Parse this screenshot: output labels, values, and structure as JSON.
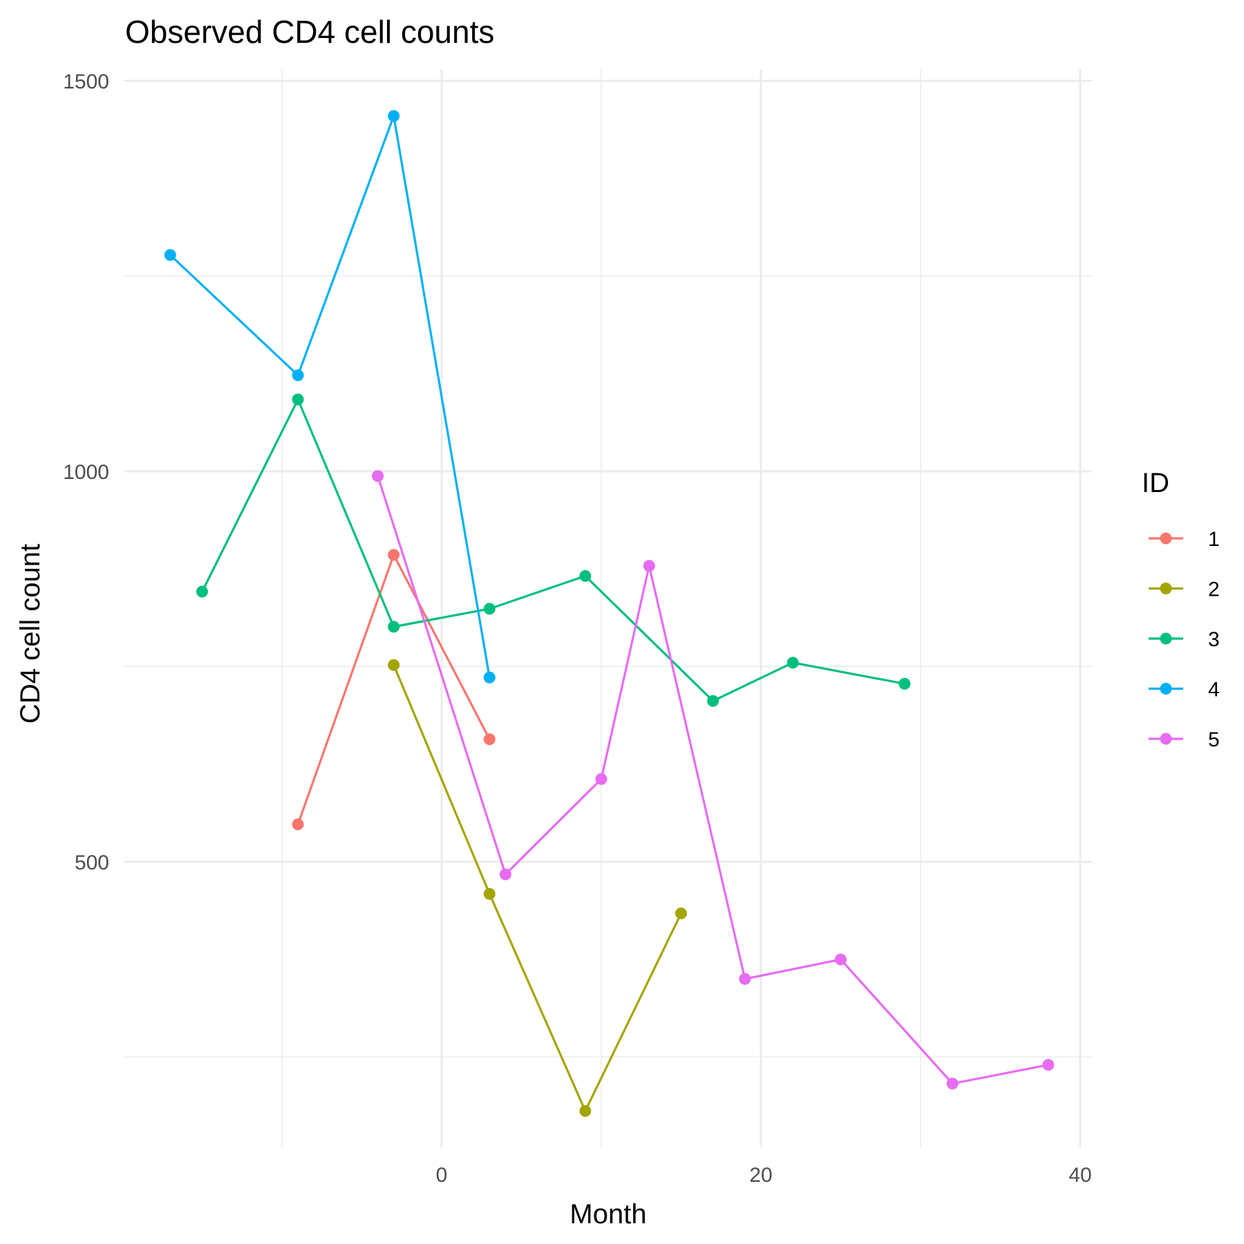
{
  "chart_data": {
    "type": "line",
    "title": "Observed CD4 cell counts",
    "xlabel": "Month",
    "ylabel": "CD4 cell count",
    "xlim": [
      -20,
      40
    ],
    "ylim": [
      150,
      1500
    ],
    "x_ticks": [
      0,
      20,
      40
    ],
    "y_ticks": [
      500,
      1000,
      1500
    ],
    "grid": true,
    "legend": {
      "title": "ID",
      "position": "right"
    },
    "series": [
      {
        "name": "1",
        "color": "#F8766D",
        "points": [
          [
            -9,
            548
          ],
          [
            -3,
            893
          ],
          [
            3,
            657
          ]
        ]
      },
      {
        "name": "2",
        "color": "#A3A500",
        "points": [
          [
            -3,
            752
          ],
          [
            3,
            459
          ],
          [
            9,
            181
          ],
          [
            15,
            434
          ]
        ]
      },
      {
        "name": "3",
        "color": "#00BF7D",
        "points": [
          [
            -15,
            846
          ],
          [
            -9,
            1092
          ],
          [
            -3,
            801
          ],
          [
            3,
            824
          ],
          [
            9,
            866
          ],
          [
            17,
            706
          ],
          [
            22,
            755
          ],
          [
            29,
            728
          ]
        ]
      },
      {
        "name": "4",
        "color": "#00B0F6",
        "points": [
          [
            -17,
            1277
          ],
          [
            -9,
            1123
          ],
          [
            -3,
            1455
          ],
          [
            3,
            736
          ]
        ]
      },
      {
        "name": "5",
        "color": "#E76BF3",
        "points": [
          [
            -4,
            994
          ],
          [
            4,
            484
          ],
          [
            10,
            606
          ],
          [
            13,
            879
          ],
          [
            19,
            350
          ],
          [
            25,
            375
          ],
          [
            32,
            216
          ],
          [
            38,
            240
          ]
        ]
      }
    ]
  }
}
